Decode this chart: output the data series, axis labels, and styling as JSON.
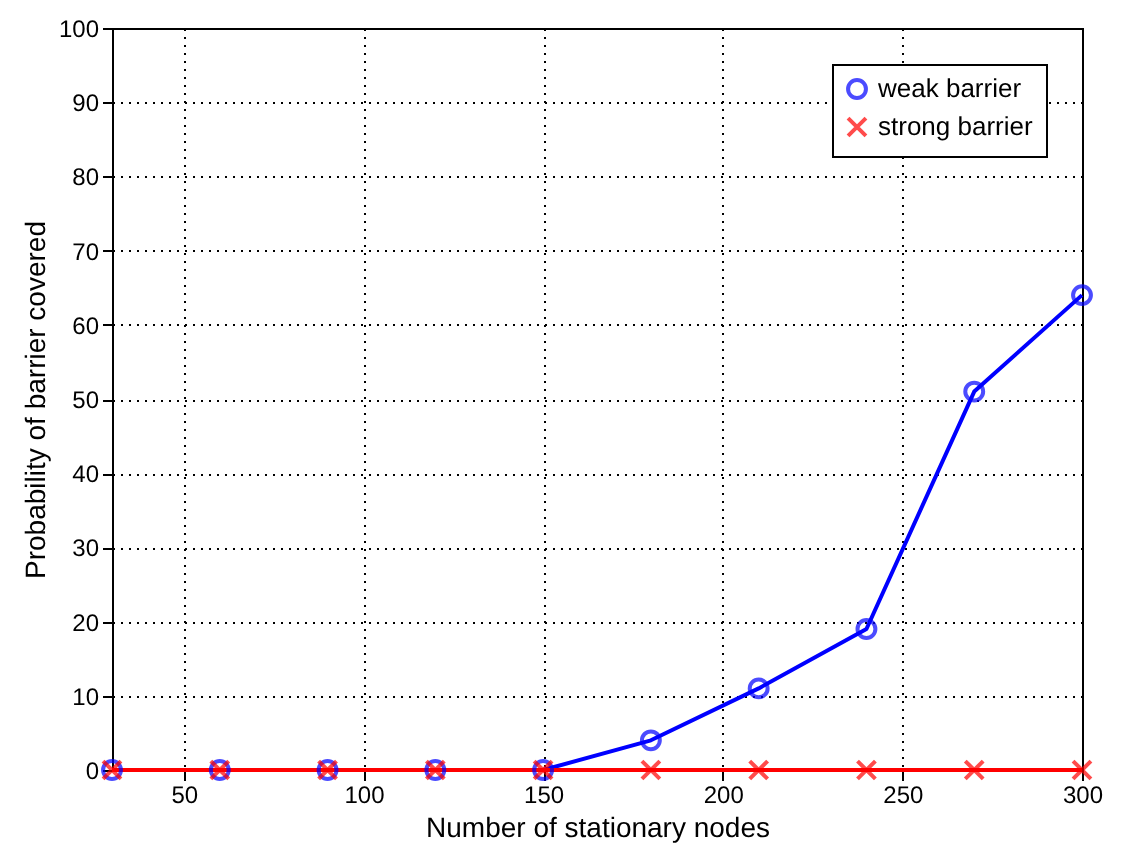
{
  "chart_data": {
    "type": "line",
    "xlabel": "Number of stationary nodes",
    "ylabel": "Probability of barrier covered",
    "x": [
      30,
      60,
      90,
      120,
      150,
      180,
      210,
      240,
      270,
      300
    ],
    "series": [
      {
        "name": "weak barrier",
        "color": "#0000ff",
        "marker": "circle",
        "values": [
          0,
          0,
          0,
          0,
          0,
          4,
          11,
          19,
          51,
          64
        ]
      },
      {
        "name": "strong barrier",
        "color": "#ff0000",
        "marker": "cross",
        "values": [
          0,
          0,
          0,
          0,
          0,
          0,
          0,
          0,
          0,
          0
        ]
      }
    ],
    "xlim": [
      30,
      300
    ],
    "xticks": [
      50,
      100,
      150,
      200,
      250,
      300
    ],
    "ylim": [
      0,
      100
    ],
    "yticks": [
      0,
      10,
      20,
      30,
      40,
      50,
      60,
      70,
      80,
      90,
      100
    ],
    "grid": true,
    "legend": "top right",
    "line_style": "solid"
  }
}
